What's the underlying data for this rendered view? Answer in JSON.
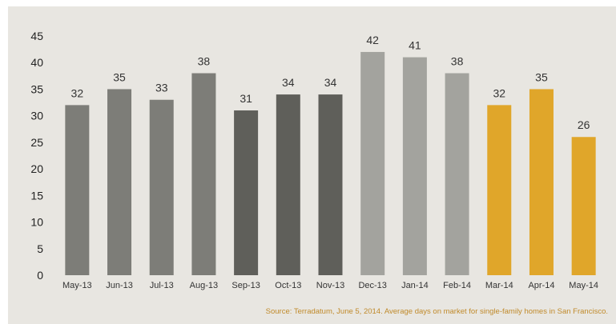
{
  "chart_data": {
    "type": "bar",
    "categories": [
      "May-13",
      "Jun-13",
      "Jul-13",
      "Aug-13",
      "Sep-13",
      "Oct-13",
      "Nov-13",
      "Dec-13",
      "Jan-14",
      "Feb-14",
      "Mar-14",
      "Apr-14",
      "May-14"
    ],
    "values": [
      32,
      35,
      33,
      38,
      31,
      34,
      34,
      42,
      41,
      38,
      32,
      35,
      26
    ],
    "bar_colors": [
      "#7d7d78",
      "#7d7d78",
      "#7d7d78",
      "#7d7d78",
      "#5f5f5a",
      "#5f5f5a",
      "#5f5f5a",
      "#a3a39e",
      "#a3a39e",
      "#a3a39e",
      "#e0a62a",
      "#e0a62a",
      "#e0a62a"
    ],
    "ylim": [
      0,
      45
    ],
    "yticks": [
      0,
      5,
      10,
      15,
      20,
      25,
      30,
      35,
      40,
      45
    ],
    "grid": false,
    "show_data_labels": true,
    "title": "",
    "xlabel": "",
    "ylabel": "",
    "source": "Source: Terradatum,  June 5, 2014. Average days on market for single-family homes  in San Francisco."
  }
}
